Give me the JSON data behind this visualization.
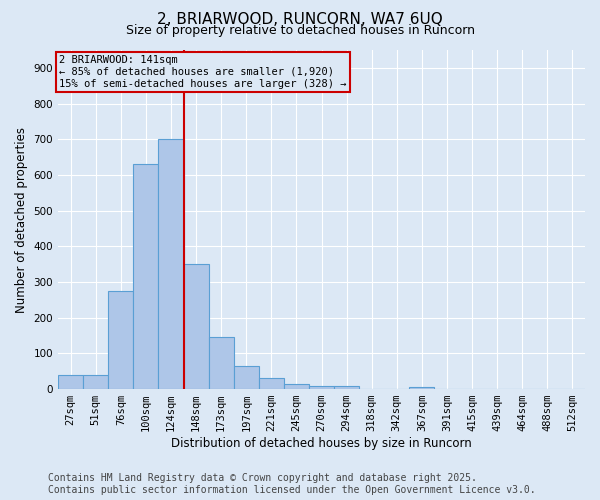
{
  "title": "2, BRIARWOOD, RUNCORN, WA7 6UQ",
  "subtitle": "Size of property relative to detached houses in Runcorn",
  "xlabel": "Distribution of detached houses by size in Runcorn",
  "ylabel": "Number of detached properties",
  "footer_line1": "Contains HM Land Registry data © Crown copyright and database right 2025.",
  "footer_line2": "Contains public sector information licensed under the Open Government Licence v3.0.",
  "bin_labels": [
    "27sqm",
    "51sqm",
    "76sqm",
    "100sqm",
    "124sqm",
    "148sqm",
    "173sqm",
    "197sqm",
    "221sqm",
    "245sqm",
    "270sqm",
    "294sqm",
    "318sqm",
    "342sqm",
    "367sqm",
    "391sqm",
    "415sqm",
    "439sqm",
    "464sqm",
    "488sqm",
    "512sqm"
  ],
  "bin_values": [
    40,
    40,
    275,
    630,
    700,
    350,
    145,
    65,
    30,
    15,
    10,
    8,
    0,
    0,
    5,
    0,
    0,
    0,
    0,
    0,
    0
  ],
  "bar_color": "#aec6e8",
  "bar_edge_color": "#5a9fd4",
  "vline_x": 4.5,
  "vline_color": "#cc0000",
  "annotation_line1": "2 BRIARWOOD: 141sqm",
  "annotation_line2": "← 85% of detached houses are smaller (1,920)",
  "annotation_line3": "15% of semi-detached houses are larger (328) →",
  "annotation_box_color": "#cc0000",
  "ylim": [
    0,
    950
  ],
  "yticks": [
    0,
    100,
    200,
    300,
    400,
    500,
    600,
    700,
    800,
    900
  ],
  "background_color": "#dce8f5",
  "grid_color": "#ffffff",
  "title_fontsize": 11,
  "subtitle_fontsize": 9,
  "axis_label_fontsize": 8.5,
  "tick_fontsize": 7.5,
  "footer_fontsize": 7
}
